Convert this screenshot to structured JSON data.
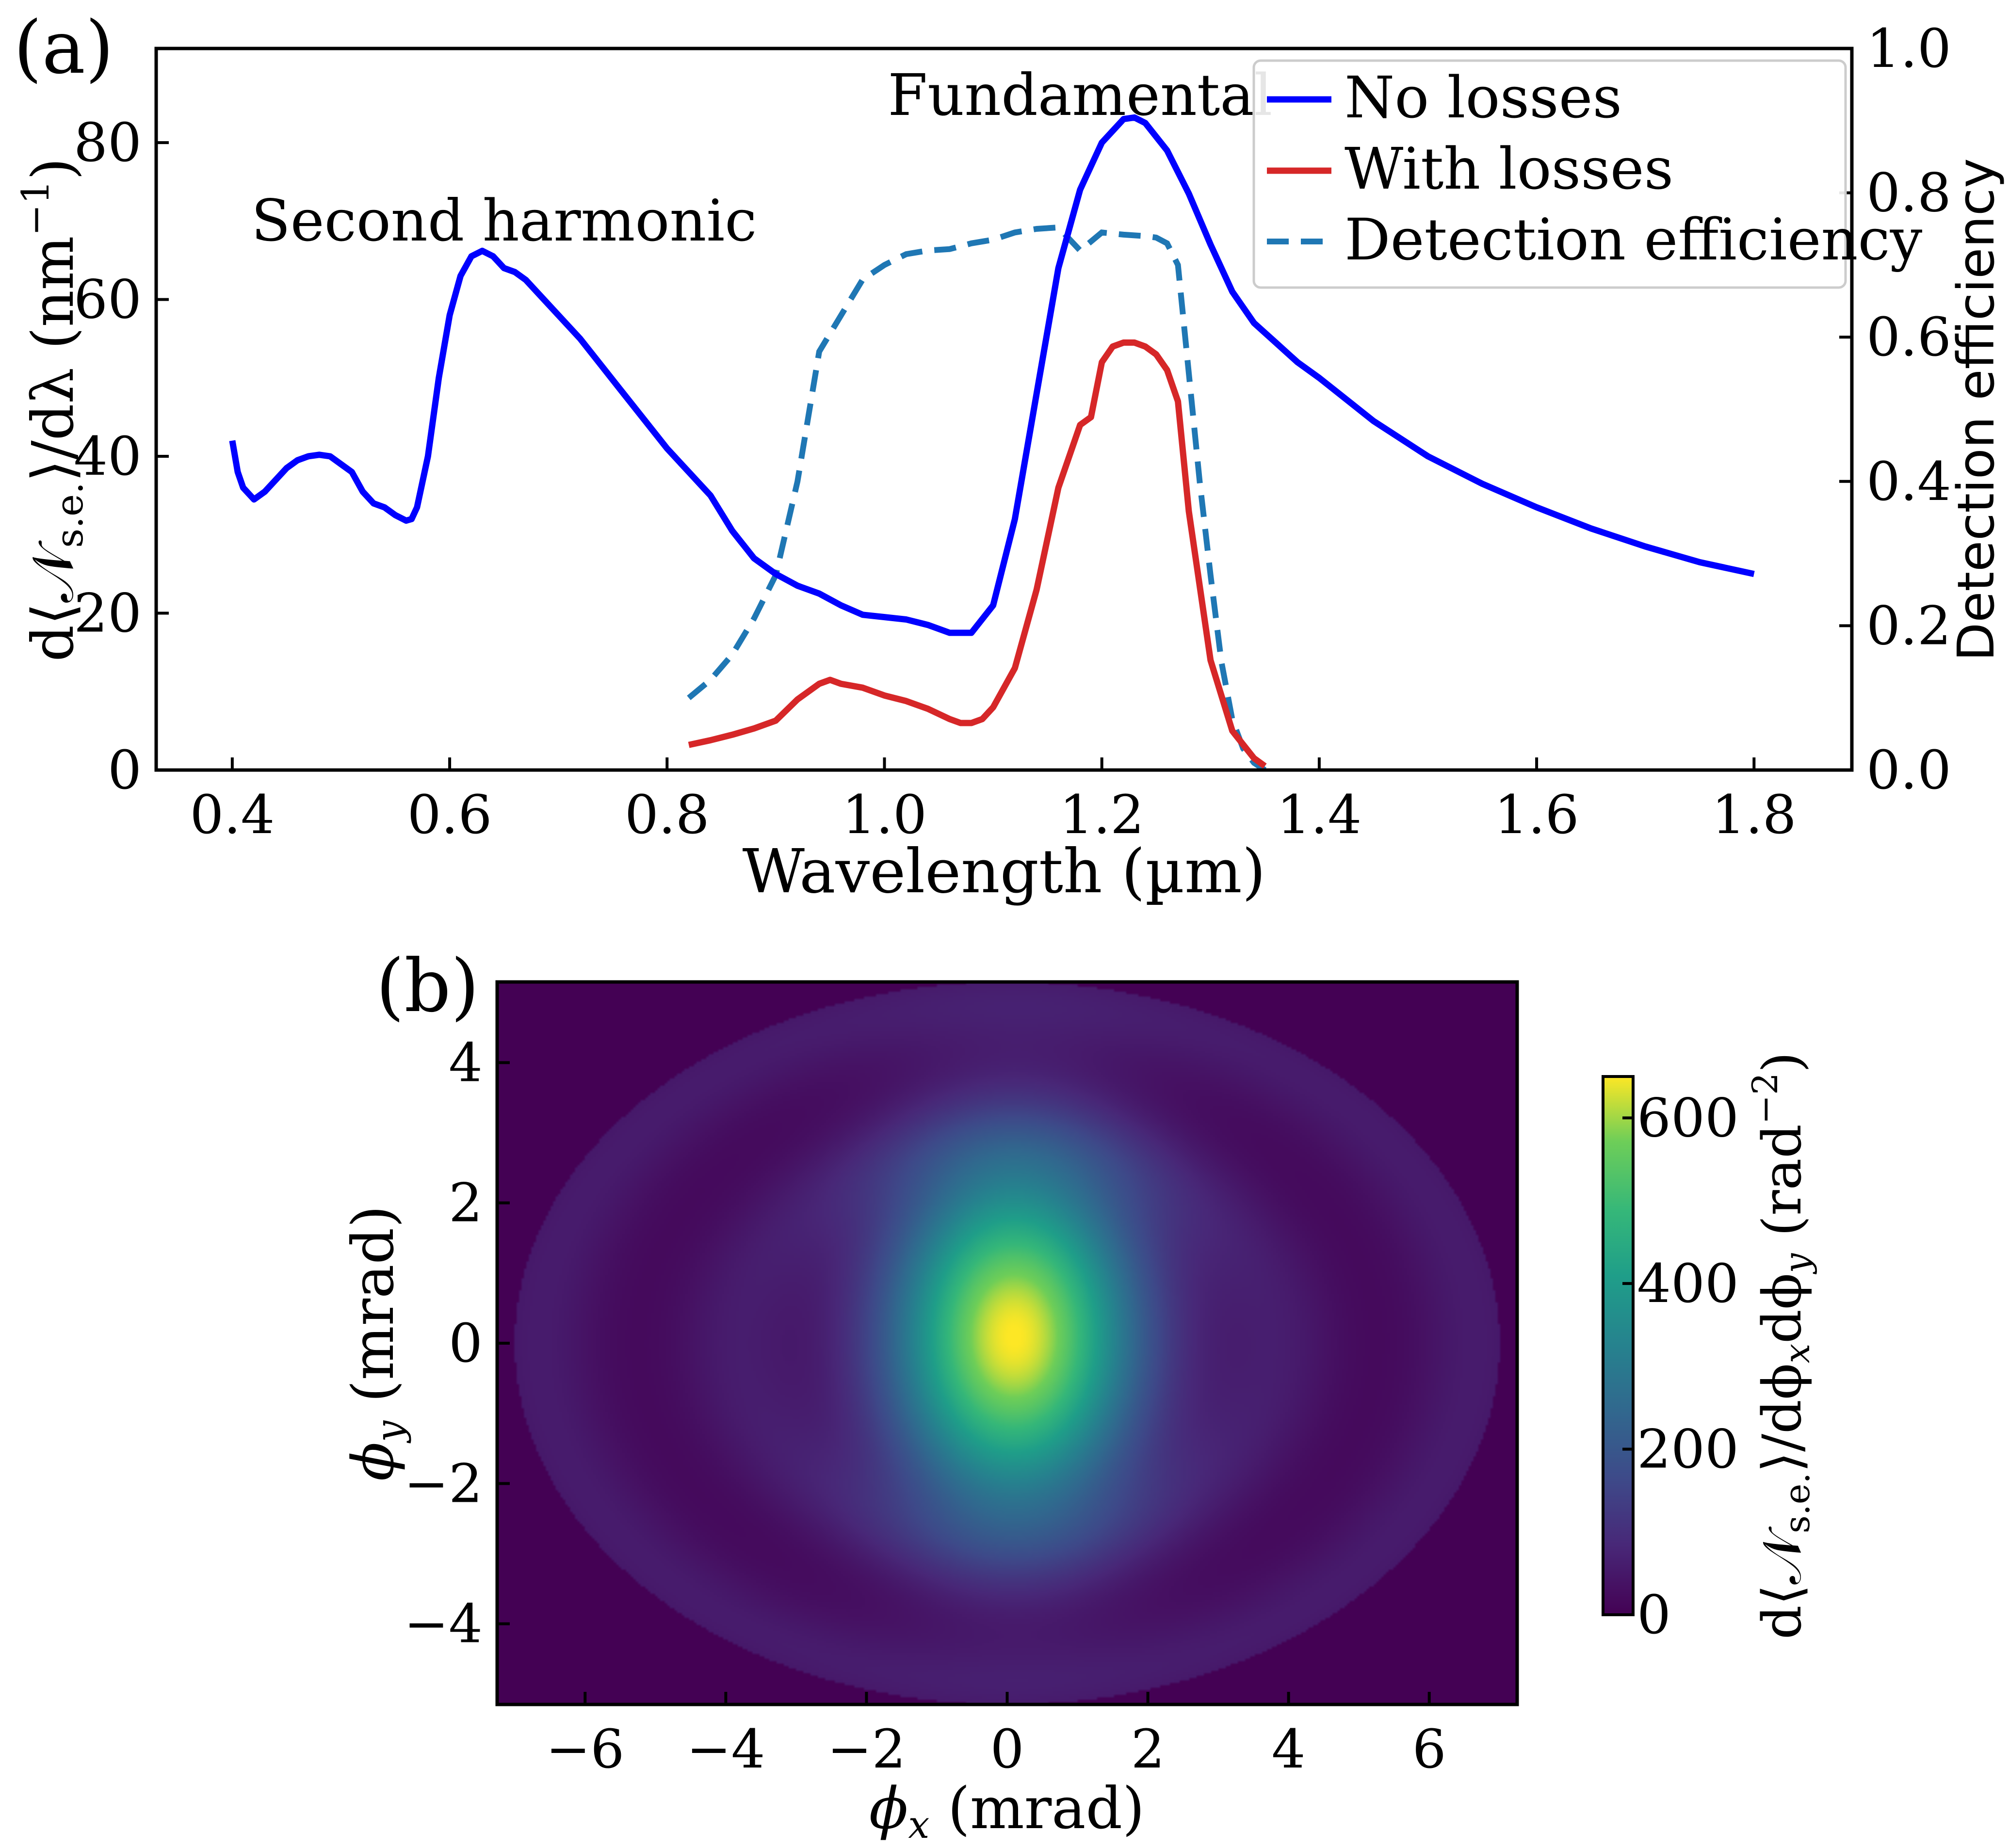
{
  "chart_data": [
    {
      "panel_label": "(a)",
      "type": "line",
      "xlabel": "Wavelength (µm)",
      "ylabel_left": "d⟨𝒩s.e.⟩/dλ (nm⁻¹)",
      "ylabel_left_parts": {
        "pre": "d⟨𝒩",
        "sub": "s.e.",
        "post": "⟩/dλ (nm",
        "sup": "−1",
        "end": ")"
      },
      "ylabel_right": "Detection efficiency",
      "xlim": [
        0.33,
        1.89
      ],
      "ylim_left": [
        0,
        92
      ],
      "ylim_right": [
        0,
        1.0
      ],
      "x_ticks": [
        0.4,
        0.6,
        0.8,
        1.0,
        1.2,
        1.4,
        1.6,
        1.8
      ],
      "x_tick_labels": [
        "0.4",
        "0.6",
        "0.8",
        "1.0",
        "1.2",
        "1.4",
        "1.6",
        "1.8"
      ],
      "y_left_ticks": [
        0,
        20,
        40,
        60,
        80
      ],
      "y_left_tick_labels": [
        "0",
        "20",
        "40",
        "60",
        "80"
      ],
      "y_right_ticks": [
        0.0,
        0.2,
        0.4,
        0.6,
        0.8,
        1.0
      ],
      "y_right_tick_labels": [
        "0.0",
        "0.2",
        "0.4",
        "0.6",
        "0.8",
        "1.0"
      ],
      "annotations": [
        {
          "text": "Second harmonic",
          "x": 0.65,
          "y": 70
        },
        {
          "text": "Fundamental",
          "x": 1.18,
          "y": 86
        }
      ],
      "legend_position": "top-right",
      "grid": false,
      "series": [
        {
          "name": "No losses",
          "axis": "left",
          "color": "#0000ff",
          "style": "solid",
          "x": [
            0.4,
            0.405,
            0.41,
            0.42,
            0.43,
            0.44,
            0.45,
            0.46,
            0.47,
            0.48,
            0.49,
            0.5,
            0.51,
            0.52,
            0.53,
            0.54,
            0.55,
            0.56,
            0.565,
            0.57,
            0.58,
            0.59,
            0.6,
            0.61,
            0.62,
            0.63,
            0.64,
            0.65,
            0.66,
            0.67,
            0.68,
            0.7,
            0.72,
            0.74,
            0.76,
            0.78,
            0.8,
            0.82,
            0.84,
            0.86,
            0.88,
            0.9,
            0.92,
            0.94,
            0.96,
            0.98,
            1.0,
            1.02,
            1.04,
            1.06,
            1.08,
            1.1,
            1.12,
            1.14,
            1.16,
            1.18,
            1.2,
            1.22,
            1.23,
            1.24,
            1.26,
            1.28,
            1.3,
            1.32,
            1.34,
            1.36,
            1.38,
            1.4,
            1.45,
            1.5,
            1.55,
            1.6,
            1.65,
            1.7,
            1.75,
            1.8
          ],
          "y": [
            42,
            38,
            36,
            34.5,
            35.5,
            37,
            38.5,
            39.5,
            40,
            40.2,
            40,
            39,
            38,
            35.5,
            34,
            33.5,
            32.5,
            31.8,
            32,
            33.5,
            40,
            50,
            58,
            63,
            65.5,
            66.2,
            65.5,
            64,
            63.5,
            62.5,
            61,
            58,
            55,
            51.5,
            48,
            44.5,
            41,
            38,
            35,
            30.5,
            27,
            25,
            23.5,
            22.5,
            21,
            19.8,
            19.5,
            19.2,
            18.5,
            17.5,
            17.5,
            21,
            32,
            48,
            64,
            74,
            80,
            83,
            83.2,
            82.5,
            79,
            73.5,
            67,
            61,
            57,
            54.5,
            52,
            50,
            44.5,
            40,
            36.5,
            33.5,
            30.8,
            28.5,
            26.5,
            25
          ]
        },
        {
          "name": "With losses",
          "axis": "left",
          "color": "#d62728",
          "style": "solid",
          "x": [
            0.82,
            0.84,
            0.86,
            0.88,
            0.9,
            0.92,
            0.94,
            0.95,
            0.96,
            0.98,
            1.0,
            1.02,
            1.04,
            1.06,
            1.07,
            1.08,
            1.09,
            1.1,
            1.12,
            1.14,
            1.16,
            1.18,
            1.19,
            1.2,
            1.21,
            1.22,
            1.23,
            1.24,
            1.25,
            1.26,
            1.27,
            1.28,
            1.3,
            1.32,
            1.34,
            1.35
          ],
          "y": [
            3.2,
            3.8,
            4.5,
            5.3,
            6.3,
            9,
            11,
            11.5,
            11,
            10.5,
            9.5,
            8.8,
            7.8,
            6.5,
            6,
            6,
            6.5,
            8,
            13,
            23,
            36,
            44,
            45,
            52,
            54,
            54.5,
            54.5,
            54,
            53,
            51,
            47,
            33,
            14,
            5,
            1.5,
            0.5
          ]
        },
        {
          "name": "Detection efficiency",
          "axis": "right",
          "color": "#1f77b4",
          "style": "dashed",
          "x": [
            0.82,
            0.84,
            0.86,
            0.88,
            0.9,
            0.92,
            0.94,
            0.96,
            0.98,
            1.0,
            1.02,
            1.04,
            1.06,
            1.08,
            1.1,
            1.12,
            1.14,
            1.16,
            1.18,
            1.2,
            1.22,
            1.24,
            1.25,
            1.26,
            1.27,
            1.28,
            1.29,
            1.3,
            1.31,
            1.32,
            1.33,
            1.34,
            1.35
          ],
          "y": [
            0.1,
            0.125,
            0.16,
            0.21,
            0.27,
            0.4,
            0.58,
            0.63,
            0.68,
            0.7,
            0.715,
            0.72,
            0.722,
            0.73,
            0.735,
            0.745,
            0.75,
            0.752,
            0.72,
            0.745,
            0.742,
            0.74,
            0.738,
            0.73,
            0.7,
            0.55,
            0.4,
            0.27,
            0.15,
            0.07,
            0.03,
            0.01,
            0.0
          ]
        }
      ]
    },
    {
      "panel_label": "(b)",
      "type": "heatmap",
      "xlabel": "ϕx (mrad)",
      "ylabel": "ϕy (mrad)",
      "xlabel_parts": {
        "sym": "ϕ",
        "sub": "x",
        "rest": " (mrad)"
      },
      "ylabel_parts": {
        "sym": "ϕ",
        "sub": "y",
        "rest": " (mrad)"
      },
      "xlim": [
        -7.25,
        7.25
      ],
      "ylim": [
        -5.15,
        5.15
      ],
      "x_ticks": [
        -6,
        -4,
        -2,
        0,
        2,
        4,
        6
      ],
      "x_tick_labels": [
        "−6",
        "−4",
        "−2",
        "0",
        "2",
        "4",
        "6"
      ],
      "y_ticks": [
        -4,
        -2,
        0,
        2,
        4
      ],
      "y_tick_labels": [
        "−4",
        "−2",
        "0",
        "2",
        "4"
      ],
      "colormap": "viridis",
      "colorbar_range": [
        0,
        650
      ],
      "colorbar_ticks": [
        0,
        200,
        400,
        600
      ],
      "colorbar_tick_labels": [
        "0",
        "200",
        "400",
        "600"
      ],
      "colorbar_label": "d⟨𝒩s.e.⟩/dϕxdϕy (rad⁻²)",
      "colorbar_label_parts": {
        "pre": "d⟨𝒩",
        "sub1": "s.e.",
        "mid": "⟩/dϕ",
        "sub2": "x",
        "mid2": "dϕ",
        "sub3": "y",
        "post": " (rad",
        "sup": "−2",
        "end": ")"
      },
      "peak_value": 640,
      "peak_center": [
        0.1,
        0.1
      ],
      "peak_sigma": [
        1.2,
        1.7
      ],
      "aperture_semi_axes": [
        7.0,
        5.15
      ],
      "ring_level": 45,
      "ring_radii_normalized": [
        0.55,
        0.95
      ]
    }
  ]
}
